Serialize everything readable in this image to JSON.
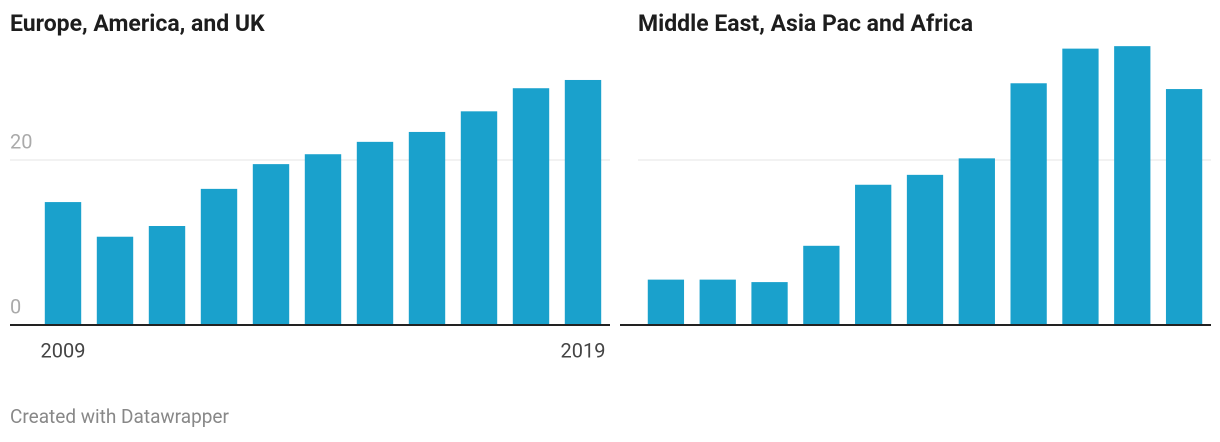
{
  "chart_data": [
    {
      "type": "bar",
      "title": "Europe, America, and UK",
      "categories": [
        "2009",
        null,
        null,
        null,
        null,
        null,
        null,
        null,
        null,
        null,
        "2019"
      ],
      "values": [
        14.9,
        10.7,
        12.0,
        16.5,
        19.5,
        20.7,
        22.2,
        23.4,
        25.9,
        28.7,
        29.7
      ],
      "color": "#1aa1cc",
      "ylim": [
        0,
        34
      ],
      "yticks": [
        0,
        20
      ],
      "show_ytick_labels": true,
      "grid": true
    },
    {
      "type": "bar",
      "title": "Middle East, Asia Pac and Africa",
      "values": [
        5.5,
        5.5,
        5.2,
        9.6,
        17.0,
        18.2,
        20.2,
        29.3,
        33.5,
        33.8,
        28.6
      ],
      "color": "#1aa1cc",
      "ylim": [
        0,
        34
      ],
      "yticks": [
        0,
        20
      ],
      "show_ytick_labels": false,
      "grid": true
    }
  ],
  "footer": "Created with Datawrapper"
}
